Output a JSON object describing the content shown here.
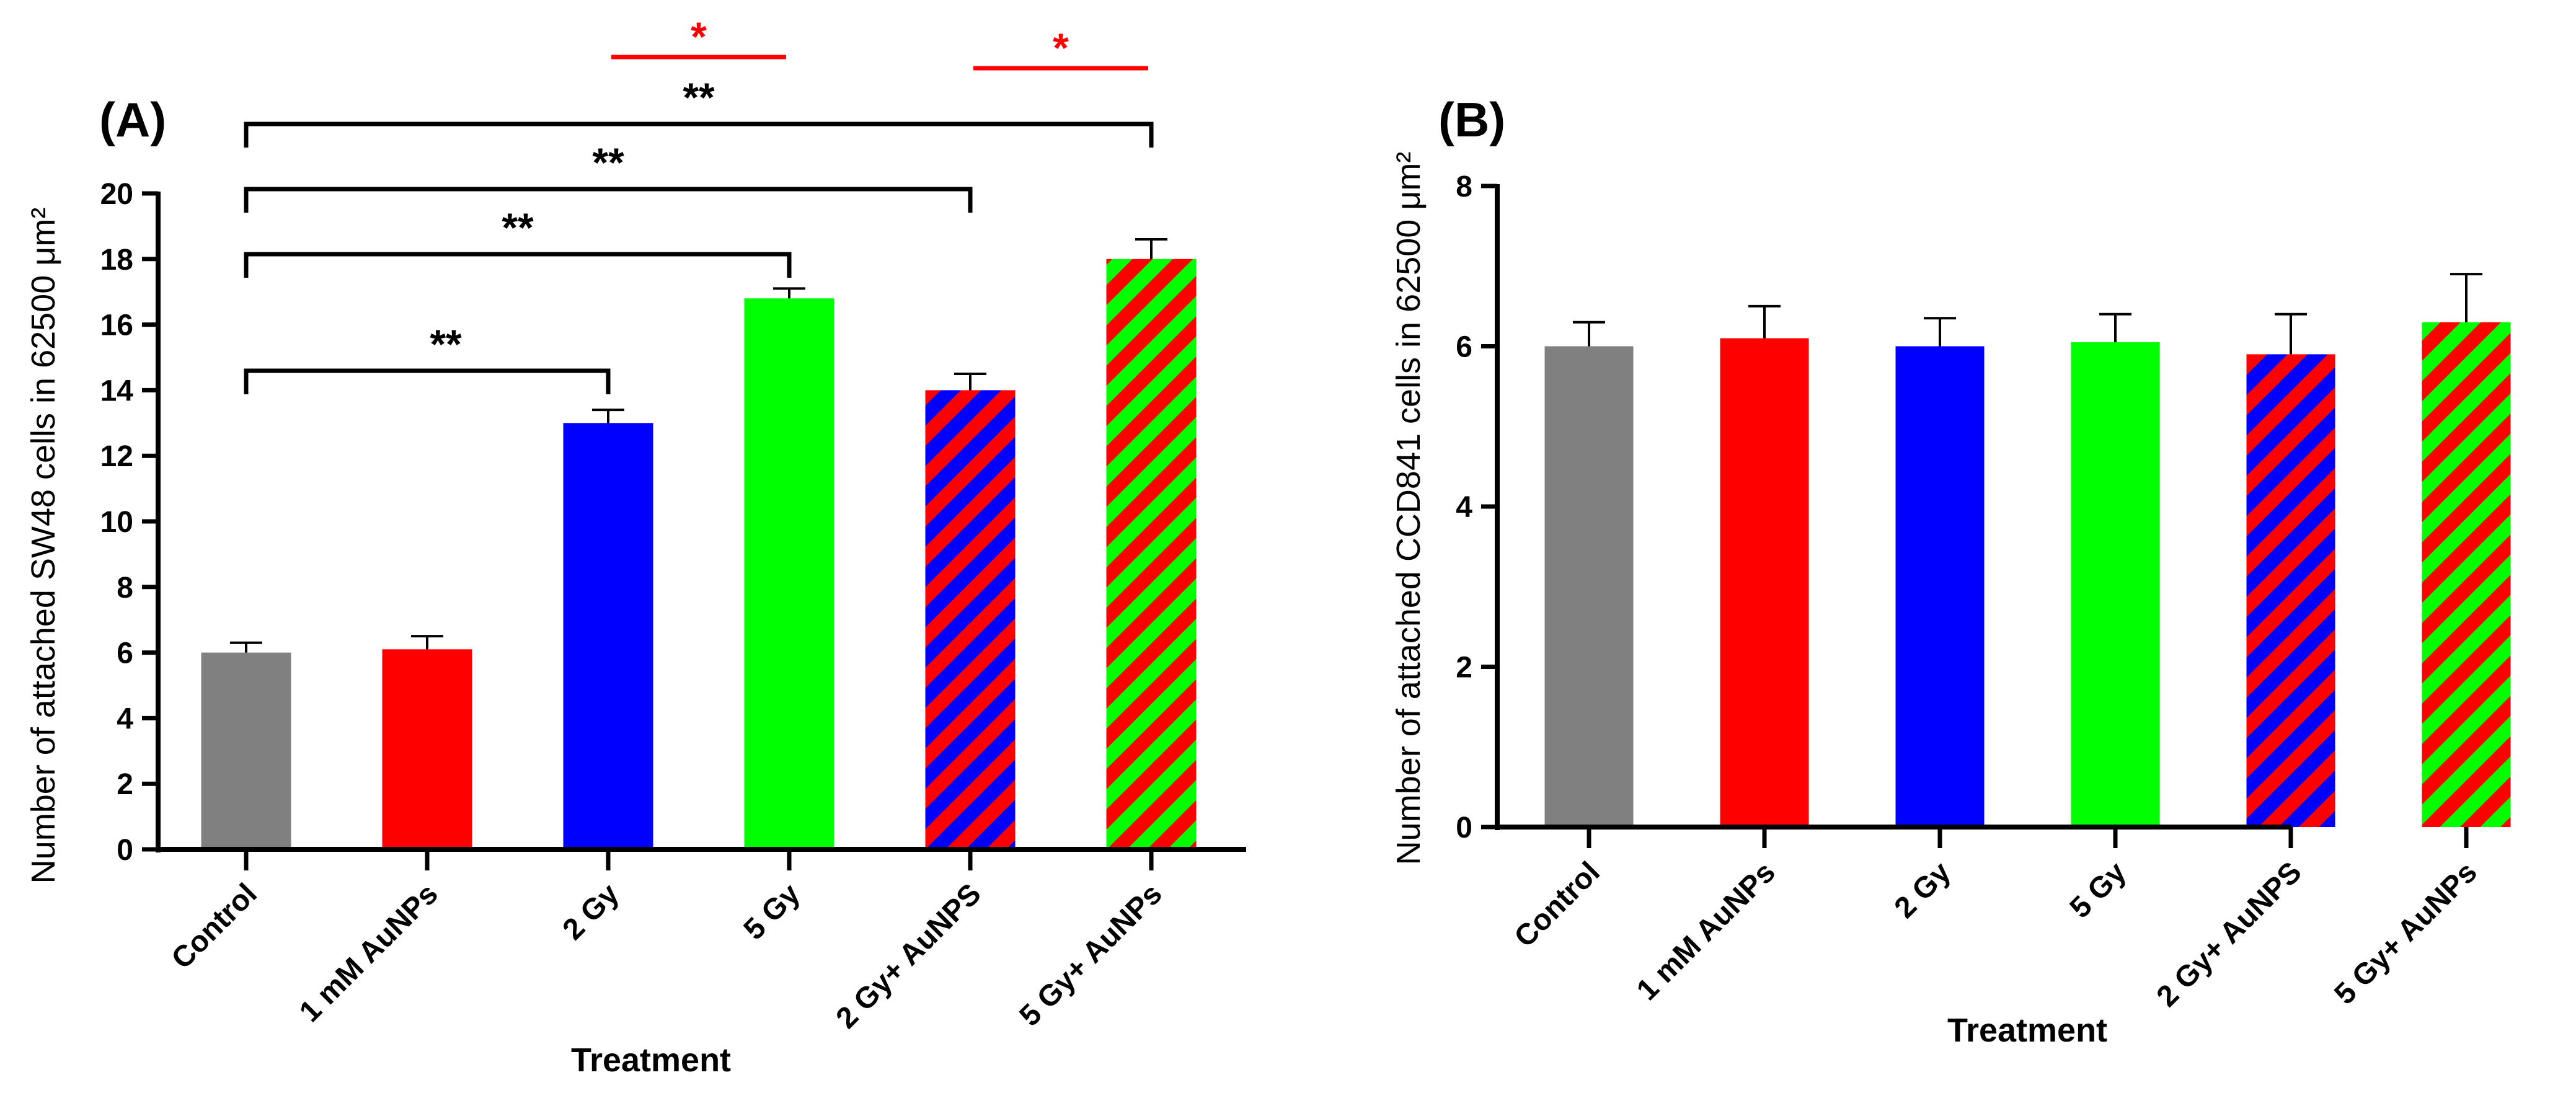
{
  "chart_data": [
    {
      "panel": "(A)",
      "type": "bar",
      "xlabel": "Treatment",
      "ylabel": "Number of attached SW48 cells in 62500 μm²",
      "ylim": [
        0,
        20
      ],
      "yticks": [
        "0",
        "2",
        "4",
        "6",
        "8",
        "10",
        "12",
        "14",
        "16",
        "18",
        "20"
      ],
      "categories": [
        "Control",
        "1 mM AuNPs",
        "2 Gy",
        "5 Gy",
        "2 Gy+ AuNPS",
        "5 Gy+ AuNPs"
      ],
      "values": [
        6.0,
        6.1,
        13.0,
        16.8,
        14.0,
        18.0
      ],
      "errors": [
        0.3,
        0.4,
        0.4,
        0.3,
        0.5,
        0.6
      ],
      "fills": [
        "gray",
        "red",
        "blue",
        "green",
        "blue-red-stripe",
        "green-red-stripe"
      ],
      "significance": [
        {
          "from": 0,
          "to": 2,
          "label": "**",
          "color": "#000000"
        },
        {
          "from": 0,
          "to": 3,
          "label": "**",
          "color": "#000000"
        },
        {
          "from": 0,
          "to": 4,
          "label": "**",
          "color": "#000000"
        },
        {
          "from": 0,
          "to": 5,
          "label": "**",
          "color": "#000000"
        },
        {
          "from": 2,
          "to": 3,
          "label": "*",
          "color": "#ff0000"
        },
        {
          "from": 4,
          "to": 5,
          "label": "*",
          "color": "#ff0000"
        }
      ]
    },
    {
      "panel": "(B)",
      "type": "bar",
      "xlabel": "Treatment",
      "ylabel": "Number of attached CCD841 cells in 62500 μm²",
      "ylim": [
        0,
        8
      ],
      "yticks": [
        "0",
        "2",
        "4",
        "6",
        "8"
      ],
      "categories": [
        "Control",
        "1 mM AuNPs",
        "2 Gy",
        "5 Gy",
        "2 Gy+ AuNPS",
        "5 Gy+ AuNPs"
      ],
      "values": [
        6.0,
        6.1,
        6.0,
        6.05,
        5.9,
        6.3
      ],
      "errors": [
        0.3,
        0.4,
        0.35,
        0.35,
        0.5,
        0.6
      ],
      "fills": [
        "gray",
        "red",
        "blue",
        "green",
        "blue-red-stripe",
        "green-red-stripe"
      ],
      "significance": []
    }
  ],
  "colors": {
    "gray": "#808080",
    "red": "#ff0000",
    "blue": "#0000ff",
    "green": "#00ff00",
    "axis": "#000000",
    "bracket": "#000000",
    "red_sig": "#ff0000"
  }
}
